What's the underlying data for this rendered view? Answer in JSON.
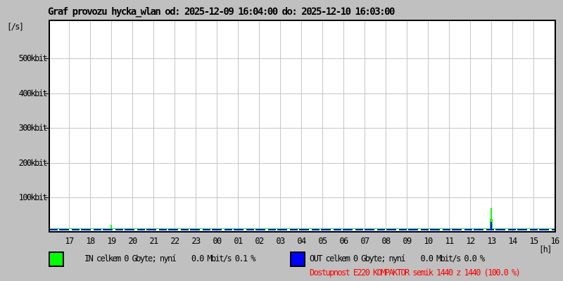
{
  "colors": {
    "background": "#c0c0c0",
    "plot_background": "#ffffff",
    "grid": "#c6c6c6",
    "axis": "#000000",
    "in": "#00ff00",
    "out": "#0000ff",
    "availability_text": "#ff0000"
  },
  "chart_data": {
    "type": "line",
    "title": "Graf provozu hycka_wlan od: 2025-12-09 16:04:00 do: 2025-12-10 16:03:00",
    "ylabel": "[/s]",
    "xlabel": "[h]",
    "unit": "kbit/s",
    "grid": true,
    "legend_position": "bottom",
    "x_ticks": [
      "17",
      "18",
      "19",
      "20",
      "21",
      "22",
      "23",
      "00",
      "01",
      "02",
      "03",
      "04",
      "05",
      "06",
      "07",
      "08",
      "09",
      "10",
      "11",
      "12",
      "13",
      "14",
      "15",
      "16"
    ],
    "y_ticks": [
      "500kbit",
      "400kbit",
      "300kbit",
      "200kbit",
      "100kbit"
    ],
    "y_tick_values_kbit": [
      500,
      400,
      300,
      200,
      100
    ],
    "ylim_kbit": [
      0,
      607
    ],
    "series": [
      {
        "name": "IN",
        "color": "#00ff00",
        "values_kbit": [
          2,
          2,
          12,
          2,
          2,
          2,
          2,
          2,
          2,
          2,
          2,
          2,
          2,
          2,
          2,
          2,
          2,
          2,
          2,
          2,
          60,
          2,
          2,
          2
        ]
      },
      {
        "name": "OUT",
        "color": "#0000ff",
        "values_kbit": [
          1,
          1,
          1,
          1,
          1,
          1,
          1,
          1,
          1,
          1,
          1,
          1,
          1,
          1,
          1,
          1,
          1,
          1,
          1,
          1,
          25,
          1,
          1,
          1
        ]
      }
    ]
  },
  "legend": {
    "in": {
      "label": "IN celkem 0 Gbyte; nyní    0.0 Mbit/s 0.1 %",
      "color": "#00ff00"
    },
    "out": {
      "label": "OUT celkem 0 Gbyte; nyní    0.0 Mbit/s 0.0 %",
      "color": "#0000ff"
    }
  },
  "availability": {
    "text": "Dostupnost E220 KOMPAKTOR semik 1440 z 1440 (100.0 %)",
    "color": "#ff0000"
  }
}
